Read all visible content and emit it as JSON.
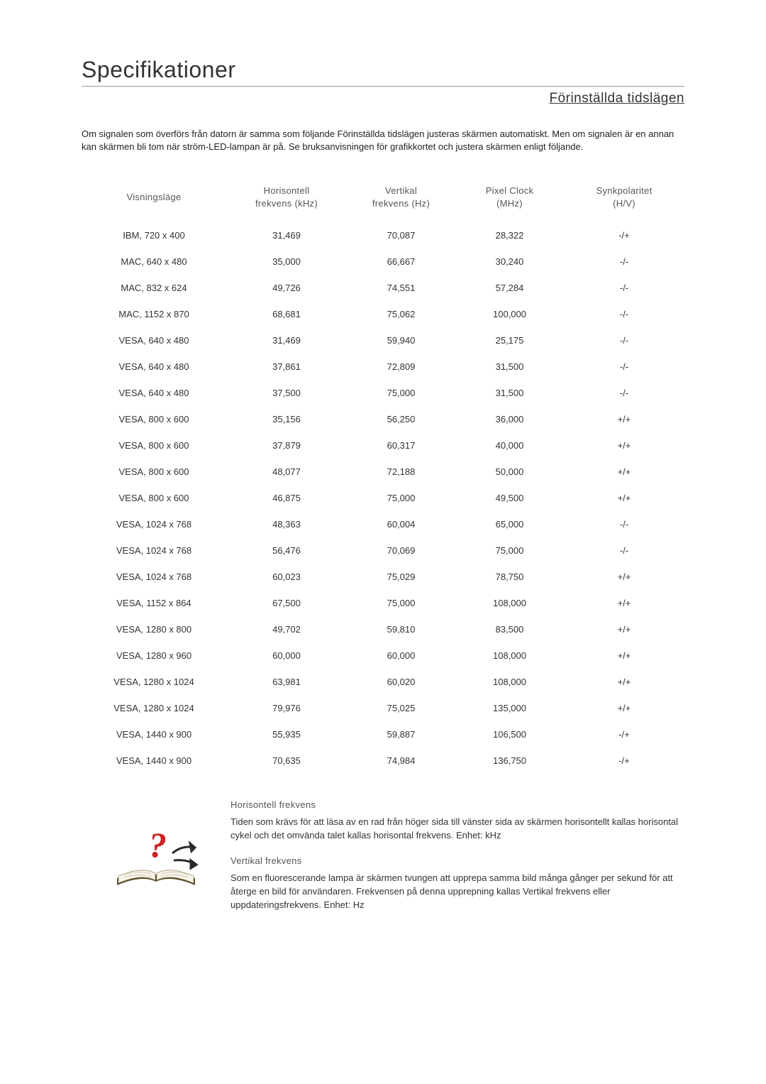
{
  "title": "Specifikationer",
  "subtitle": "Förinställda tidslägen",
  "intro": "Om signalen som överförs från datorn är samma som följande Förinställda tidslägen justeras skärmen automatiskt. Men om signalen är en annan kan skärmen bli tom när ström-LED-lampan är på. Se bruksanvisningen för grafikkortet och justera skärmen enligt följande.",
  "columns": [
    {
      "l1": "Visningsläge",
      "l2": ""
    },
    {
      "l1": "Horisontell",
      "l2": "frekvens (kHz)"
    },
    {
      "l1": "Vertikal",
      "l2": "frekvens (Hz)"
    },
    {
      "l1": "Pixel Clock",
      "l2": "(MHz)"
    },
    {
      "l1": "Synkpolaritet",
      "l2": "(H/V)"
    }
  ],
  "rows": [
    [
      "IBM, 720 x 400",
      "31,469",
      "70,087",
      "28,322",
      "-/+"
    ],
    [
      "MAC, 640 x 480",
      "35,000",
      "66,667",
      "30,240",
      "-/-"
    ],
    [
      "MAC, 832 x 624",
      "49,726",
      "74,551",
      "57,284",
      "-/-"
    ],
    [
      "MAC, 1152 x 870",
      "68,681",
      "75,062",
      "100,000",
      "-/-"
    ],
    [
      "VESA, 640 x 480",
      "31,469",
      "59,940",
      "25,175",
      "-/-"
    ],
    [
      "VESA, 640 x 480",
      "37,861",
      "72,809",
      "31,500",
      "-/-"
    ],
    [
      "VESA, 640 x 480",
      "37,500",
      "75,000",
      "31,500",
      "-/-"
    ],
    [
      "VESA, 800 x 600",
      "35,156",
      "56,250",
      "36,000",
      "+/+"
    ],
    [
      "VESA, 800 x 600",
      "37,879",
      "60,317",
      "40,000",
      "+/+"
    ],
    [
      "VESA, 800 x 600",
      "48,077",
      "72,188",
      "50,000",
      "+/+"
    ],
    [
      "VESA, 800 x 600",
      "46,875",
      "75,000",
      "49,500",
      "+/+"
    ],
    [
      "VESA, 1024 x 768",
      "48,363",
      "60,004",
      "65,000",
      "-/-"
    ],
    [
      "VESA, 1024 x 768",
      "56,476",
      "70,069",
      "75,000",
      "-/-"
    ],
    [
      "VESA, 1024 x 768",
      "60,023",
      "75,029",
      "78,750",
      "+/+"
    ],
    [
      "VESA, 1152 x 864",
      "67,500",
      "75,000",
      "108,000",
      "+/+"
    ],
    [
      "VESA, 1280 x 800",
      "49,702",
      "59,810",
      "83,500",
      "+/+"
    ],
    [
      "VESA, 1280 x 960",
      "60,000",
      "60,000",
      "108,000",
      "+/+"
    ],
    [
      "VESA, 1280 x 1024",
      "63,981",
      "60,020",
      "108,000",
      "+/+"
    ],
    [
      "VESA, 1280 x 1024",
      "79,976",
      "75,025",
      "135,000",
      "+/+"
    ],
    [
      "VESA, 1440 x 900",
      "55,935",
      "59,887",
      "106,500",
      "-/+"
    ],
    [
      "VESA, 1440 x 900",
      "70,635",
      "74,984",
      "136,750",
      "-/+"
    ]
  ],
  "defs": {
    "h_freq_title": "Horisontell frekvens",
    "h_freq_body": "Tiden som krävs för att läsa av en rad från höger sida till vänster sida av skärmen horisontellt kallas horisontal cykel och det omvända talet kallas horisontal frekvens. Enhet: kHz",
    "v_freq_title": "Vertikal frekvens",
    "v_freq_body": "Som en fluorescerande lampa är skärmen tvungen att upprepa samma bild många gånger per sekund för att återge en bild för användaren. Frekvensen på denna upprepning kallas Vertikal frekvens eller uppdateringsfrekvens. Enhet: Hz"
  },
  "colors": {
    "rule": "#999999",
    "text": "#333333",
    "muted": "#555555",
    "question": "#cc2222",
    "book_cover": "#5a4a2a",
    "book_pages": "#f7f3e8",
    "arrow": "#2a2a2a"
  }
}
